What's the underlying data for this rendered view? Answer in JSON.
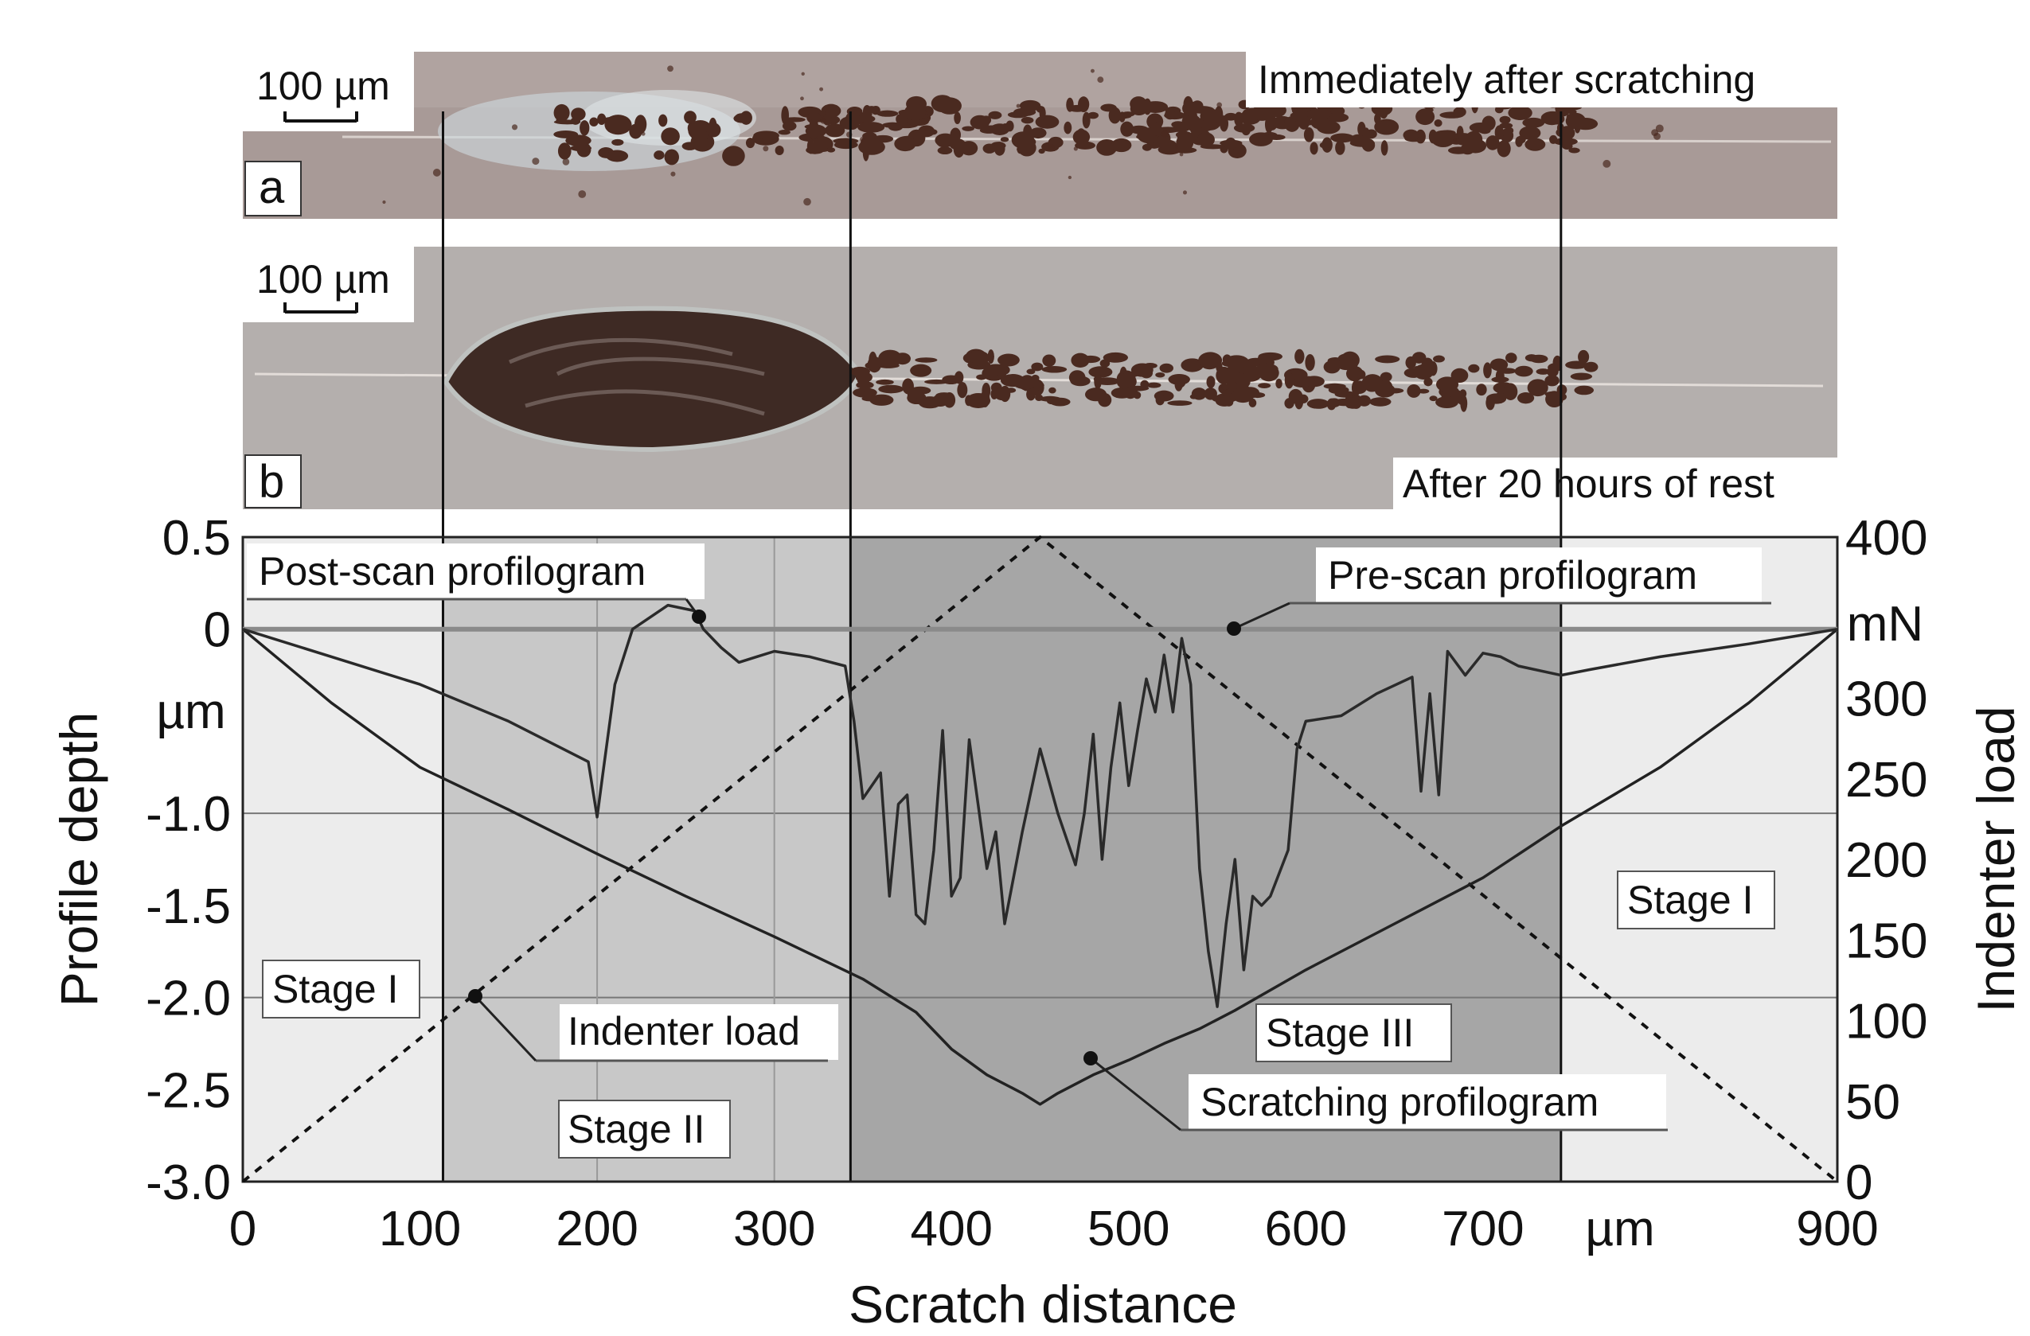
{
  "figure": {
    "panel_a": {
      "tag": "a",
      "caption": "Immediately after scratching",
      "scale_bar": "100 µm"
    },
    "panel_b": {
      "tag": "b",
      "caption": "After 20 hours of rest",
      "scale_bar": "100 µm"
    }
  },
  "colors": {
    "stage1_bg": "#ececec",
    "stage2_bg": "#c8c8c8",
    "stage3_bg": "#a6a6a6",
    "scratch_line": "#222222",
    "prescan_line": "#8a8a8a",
    "postscan_line": "#2a2a2a",
    "load_line": "#111111",
    "photo_a_bg": "#a89a97",
    "photo_b_bg": "#b4afad",
    "debris": "#4a2a20"
  },
  "chart_data": {
    "type": "line",
    "xlabel": "Scratch distance",
    "x_unit": "µm",
    "ylabel": "Profile depth",
    "y_unit": "µm",
    "y2label": "Indenter load",
    "y2_unit": "mN",
    "xlim": [
      0,
      900
    ],
    "ylim": [
      -3.0,
      0.5
    ],
    "y2lim": [
      0,
      400
    ],
    "x_ticks": [
      "0",
      "100",
      "200",
      "300",
      "400",
      "500",
      "600",
      "700",
      "900"
    ],
    "y_ticks": [
      "0.5",
      "0",
      "-1.0",
      "-1.5",
      "-2.0",
      "-2.5",
      "-3.0"
    ],
    "y2_ticks": [
      "400",
      "300",
      "250",
      "200",
      "150",
      "100",
      "50",
      "0"
    ],
    "stage_boundaries": [
      113,
      343,
      744
    ],
    "stages": [
      {
        "name": "Stage I",
        "from": 0,
        "to": 113
      },
      {
        "name": "Stage II",
        "from": 113,
        "to": 343
      },
      {
        "name": "Stage III",
        "from": 343,
        "to": 744
      },
      {
        "name": "Stage I",
        "from": 744,
        "to": 900
      }
    ],
    "annotations": {
      "post_scan": "Post-scan profilogram",
      "pre_scan": "Pre-scan profilogram",
      "indenter_load": "Indenter load",
      "scratching": "Scratching profilogram",
      "stage1_left": "Stage I",
      "stage1_right": "Stage I",
      "stage2": "Stage II",
      "stage3": "Stage III"
    },
    "series": [
      {
        "name": "Indenter load",
        "axis": "y2",
        "style": "dotted",
        "x": [
          0,
          450,
          900
        ],
        "values": [
          0,
          400,
          0
        ]
      },
      {
        "name": "Pre-scan profilogram",
        "axis": "y",
        "x": [
          0,
          900
        ],
        "values": [
          0,
          0
        ]
      },
      {
        "name": "Scratching profilogram",
        "axis": "y",
        "x": [
          0,
          50,
          100,
          150,
          200,
          250,
          300,
          350,
          380,
          400,
          420,
          440,
          450,
          460,
          480,
          500,
          520,
          540,
          560,
          600,
          650,
          700,
          744,
          800,
          850,
          900
        ],
        "values": [
          0,
          -0.4,
          -0.75,
          -0.98,
          -1.22,
          -1.45,
          -1.67,
          -1.9,
          -2.08,
          -2.28,
          -2.42,
          -2.52,
          -2.58,
          -2.52,
          -2.42,
          -2.34,
          -2.25,
          -2.17,
          -2.07,
          -1.85,
          -1.6,
          -1.35,
          -1.07,
          -0.75,
          -0.4,
          0
        ]
      },
      {
        "name": "Post-scan profilogram",
        "axis": "y",
        "x": [
          0,
          100,
          150,
          195,
          200,
          203,
          210,
          220,
          240,
          255,
          260,
          270,
          280,
          290,
          300,
          320,
          340,
          345,
          350,
          360,
          365,
          370,
          375,
          380,
          385,
          390,
          395,
          400,
          405,
          410,
          420,
          425,
          430,
          440,
          450,
          460,
          470,
          475,
          480,
          485,
          490,
          495,
          500,
          505,
          510,
          515,
          520,
          525,
          530,
          535,
          540,
          545,
          550,
          555,
          560,
          565,
          570,
          575,
          580,
          590,
          595,
          600,
          620,
          640,
          660,
          665,
          670,
          675,
          680,
          690,
          700,
          710,
          720,
          744,
          760,
          800,
          850,
          900
        ],
        "values": [
          0,
          -0.3,
          -0.5,
          -0.72,
          -1.02,
          -0.8,
          -0.3,
          0.0,
          0.13,
          0.1,
          0.0,
          -0.1,
          -0.18,
          -0.15,
          -0.12,
          -0.15,
          -0.2,
          -0.5,
          -0.92,
          -0.78,
          -1.45,
          -0.95,
          -0.9,
          -1.55,
          -1.6,
          -1.2,
          -0.55,
          -1.45,
          -1.35,
          -0.6,
          -1.3,
          -1.1,
          -1.6,
          -1.1,
          -0.65,
          -1.0,
          -1.28,
          -1.0,
          -0.57,
          -1.25,
          -0.75,
          -0.4,
          -0.85,
          -0.55,
          -0.27,
          -0.45,
          -0.14,
          -0.45,
          -0.05,
          -0.3,
          -1.3,
          -1.75,
          -2.05,
          -1.6,
          -1.25,
          -1.85,
          -1.45,
          -1.5,
          -1.45,
          -1.2,
          -0.65,
          -0.5,
          -0.47,
          -0.35,
          -0.26,
          -0.88,
          -0.35,
          -0.9,
          -0.12,
          -0.25,
          -0.13,
          -0.15,
          -0.2,
          -0.25,
          -0.22,
          -0.15,
          -0.08,
          0
        ]
      }
    ]
  }
}
